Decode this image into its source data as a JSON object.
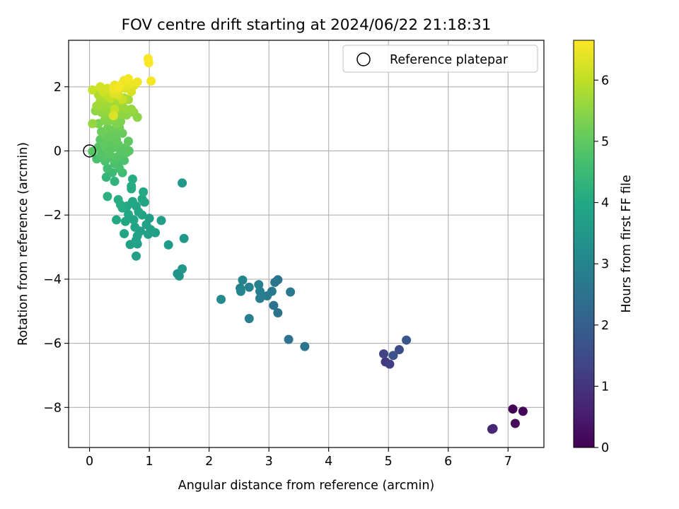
{
  "chart_data": {
    "type": "scatter",
    "title": "FOV centre drift starting at 2024/06/22 21:18:31",
    "xlabel": "Angular distance from reference (arcmin)",
    "ylabel": "Rotation from reference (arcmin)",
    "xlim": [
      -0.35,
      7.6
    ],
    "ylim": [
      -9.25,
      3.45
    ],
    "xticks": [
      0,
      1,
      2,
      3,
      4,
      5,
      6,
      7
    ],
    "yticks": [
      -8,
      -6,
      -4,
      -2,
      0,
      2
    ],
    "grid": true,
    "legend": {
      "placement": "top-right",
      "entries": [
        "Reference platepar"
      ]
    },
    "reference_point": {
      "x": 0,
      "y": 0
    },
    "colorbar": {
      "label": "Hours from first FF file",
      "colormap": "viridis",
      "range": [
        0,
        6.65
      ],
      "ticks": [
        0,
        1,
        2,
        3,
        4,
        5,
        6
      ]
    },
    "points": [
      {
        "x": 7.08,
        "y": -8.05,
        "c": 0.05
      },
      {
        "x": 7.25,
        "y": -8.12,
        "c": 0.1
      },
      {
        "x": 7.12,
        "y": -8.5,
        "c": 0.15
      },
      {
        "x": 6.73,
        "y": -8.68,
        "c": 0.7
      },
      {
        "x": 6.75,
        "y": -8.66,
        "c": 0.75
      },
      {
        "x": 5.3,
        "y": -5.9,
        "c": 1.8
      },
      {
        "x": 5.18,
        "y": -6.2,
        "c": 1.5
      },
      {
        "x": 5.08,
        "y": -6.38,
        "c": 1.7
      },
      {
        "x": 4.92,
        "y": -6.33,
        "c": 1.3
      },
      {
        "x": 4.95,
        "y": -6.58,
        "c": 1.1
      },
      {
        "x": 5.02,
        "y": -6.65,
        "c": 1.2
      },
      {
        "x": 3.6,
        "y": -6.1,
        "c": 2.6
      },
      {
        "x": 3.33,
        "y": -5.88,
        "c": 2.5
      },
      {
        "x": 3.15,
        "y": -4.02,
        "c": 2.55
      },
      {
        "x": 3.1,
        "y": -4.1,
        "c": 2.6
      },
      {
        "x": 3.05,
        "y": -4.38,
        "c": 2.65
      },
      {
        "x": 3.08,
        "y": -4.82,
        "c": 2.5
      },
      {
        "x": 3.15,
        "y": -5.05,
        "c": 2.55
      },
      {
        "x": 3.36,
        "y": -4.4,
        "c": 2.7
      },
      {
        "x": 2.97,
        "y": -4.52,
        "c": 2.75
      },
      {
        "x": 2.85,
        "y": -4.6,
        "c": 2.8
      },
      {
        "x": 2.85,
        "y": -4.38,
        "c": 2.85
      },
      {
        "x": 2.83,
        "y": -4.17,
        "c": 2.9
      },
      {
        "x": 2.67,
        "y": -4.25,
        "c": 2.95
      },
      {
        "x": 2.56,
        "y": -4.03,
        "c": 3.0
      },
      {
        "x": 2.52,
        "y": -4.28,
        "c": 2.9
      },
      {
        "x": 2.53,
        "y": -4.38,
        "c": 3.0
      },
      {
        "x": 2.2,
        "y": -4.63,
        "c": 3.15
      },
      {
        "x": 2.67,
        "y": -5.23,
        "c": 2.8
      },
      {
        "x": 1.55,
        "y": -1.0,
        "c": 3.5
      },
      {
        "x": 1.58,
        "y": -2.73,
        "c": 3.55
      },
      {
        "x": 1.55,
        "y": -3.68,
        "c": 3.5
      },
      {
        "x": 1.47,
        "y": -3.83,
        "c": 3.4
      },
      {
        "x": 1.5,
        "y": -3.9,
        "c": 3.45
      },
      {
        "x": 1.32,
        "y": -2.93,
        "c": 3.6
      },
      {
        "x": 1.2,
        "y": -2.17,
        "c": 3.7
      },
      {
        "x": 1.1,
        "y": -2.55,
        "c": 3.75
      },
      {
        "x": 1.02,
        "y": -2.45,
        "c": 3.8
      },
      {
        "x": 0.98,
        "y": -2.6,
        "c": 3.78
      },
      {
        "x": 1.0,
        "y": -2.1,
        "c": 3.7
      },
      {
        "x": 0.95,
        "y": -2.3,
        "c": 3.8
      },
      {
        "x": 0.92,
        "y": -1.6,
        "c": 3.9
      },
      {
        "x": 0.9,
        "y": -1.28,
        "c": 4.0
      },
      {
        "x": 0.88,
        "y": -2.0,
        "c": 3.85
      },
      {
        "x": 0.85,
        "y": -2.5,
        "c": 3.78
      },
      {
        "x": 0.82,
        "y": -1.9,
        "c": 3.88
      },
      {
        "x": 0.8,
        "y": -2.65,
        "c": 3.8
      },
      {
        "x": 0.8,
        "y": -2.9,
        "c": 3.75
      },
      {
        "x": 0.78,
        "y": -3.28,
        "c": 3.72
      },
      {
        "x": 0.78,
        "y": -1.72,
        "c": 3.9
      },
      {
        "x": 0.76,
        "y": -2.38,
        "c": 3.85
      },
      {
        "x": 0.74,
        "y": -2.15,
        "c": 3.9
      },
      {
        "x": 0.72,
        "y": -1.58,
        "c": 3.95
      },
      {
        "x": 0.72,
        "y": -0.88,
        "c": 4.1
      },
      {
        "x": 0.7,
        "y": -1.1,
        "c": 4.05
      },
      {
        "x": 0.7,
        "y": -1.18,
        "c": 4.05
      },
      {
        "x": 0.68,
        "y": -2.92,
        "c": 3.8
      },
      {
        "x": 0.65,
        "y": -1.98,
        "c": 3.95
      },
      {
        "x": 0.63,
        "y": -1.72,
        "c": 4.0
      },
      {
        "x": 0.6,
        "y": -2.2,
        "c": 3.95
      },
      {
        "x": 0.58,
        "y": -2.58,
        "c": 3.9
      },
      {
        "x": 0.55,
        "y": -1.78,
        "c": 4.05
      },
      {
        "x": 0.52,
        "y": -1.68,
        "c": 4.1
      },
      {
        "x": 0.48,
        "y": -1.52,
        "c": 4.1
      },
      {
        "x": 0.45,
        "y": -2.15,
        "c": 4.0
      },
      {
        "x": 0.42,
        "y": -0.95,
        "c": 4.3
      },
      {
        "x": 0.3,
        "y": -1.42,
        "c": 4.2
      },
      {
        "x": 0.28,
        "y": -0.82,
        "c": 4.35
      },
      {
        "x": 0.78,
        "y": -2.78,
        "c": 3.82
      },
      {
        "x": 0.88,
        "y": -1.5,
        "c": 3.95
      },
      {
        "x": 0.05,
        "y": -0.02,
        "c": 4.9
      },
      {
        "x": 0.12,
        "y": -0.25,
        "c": 4.7
      },
      {
        "x": 0.15,
        "y": 0.12,
        "c": 4.85
      },
      {
        "x": 0.18,
        "y": 0.35,
        "c": 4.95
      },
      {
        "x": 0.2,
        "y": -0.1,
        "c": 4.8
      },
      {
        "x": 0.22,
        "y": 0.55,
        "c": 5.1
      },
      {
        "x": 0.25,
        "y": 0.18,
        "c": 5.0
      },
      {
        "x": 0.26,
        "y": -0.32,
        "c": 4.75
      },
      {
        "x": 0.28,
        "y": 0.45,
        "c": 5.05
      },
      {
        "x": 0.3,
        "y": 0.02,
        "c": 4.9
      },
      {
        "x": 0.3,
        "y": -0.55,
        "c": 4.6
      },
      {
        "x": 0.33,
        "y": 0.3,
        "c": 5.0
      },
      {
        "x": 0.35,
        "y": -0.15,
        "c": 4.8
      },
      {
        "x": 0.36,
        "y": 0.65,
        "c": 5.15
      },
      {
        "x": 0.38,
        "y": -0.68,
        "c": 4.5
      },
      {
        "x": 0.4,
        "y": 0.1,
        "c": 4.95
      },
      {
        "x": 0.42,
        "y": -0.4,
        "c": 4.7
      },
      {
        "x": 0.45,
        "y": 0.5,
        "c": 5.1
      },
      {
        "x": 0.45,
        "y": -0.2,
        "c": 4.85
      },
      {
        "x": 0.48,
        "y": 0.2,
        "c": 5.0
      },
      {
        "x": 0.5,
        "y": -0.55,
        "c": 4.65
      },
      {
        "x": 0.5,
        "y": 0.72,
        "c": 5.2
      },
      {
        "x": 0.52,
        "y": 0.0,
        "c": 4.9
      },
      {
        "x": 0.55,
        "y": -0.1,
        "c": 4.85
      },
      {
        "x": 0.55,
        "y": 0.55,
        "c": 5.1
      },
      {
        "x": 0.58,
        "y": -0.3,
        "c": 4.75
      },
      {
        "x": 0.6,
        "y": 0.1,
        "c": 4.95
      },
      {
        "x": 0.62,
        "y": -0.05,
        "c": 4.9
      },
      {
        "x": 0.65,
        "y": 0.3,
        "c": 5.0
      },
      {
        "x": 0.66,
        "y": 0.0,
        "c": 4.9
      },
      {
        "x": 0.55,
        "y": -0.68,
        "c": 4.55
      },
      {
        "x": 0.45,
        "y": 0.35,
        "c": 5.05
      },
      {
        "x": 0.4,
        "y": -0.25,
        "c": 4.8
      },
      {
        "x": 0.35,
        "y": 0.45,
        "c": 5.05
      },
      {
        "x": 0.25,
        "y": -0.18,
        "c": 4.85
      },
      {
        "x": 0.2,
        "y": 0.6,
        "c": 5.15
      },
      {
        "x": 0.3,
        "y": 0.7,
        "c": 5.2
      },
      {
        "x": 0.32,
        "y": -0.08,
        "c": 4.9
      },
      {
        "x": 0.48,
        "y": -0.45,
        "c": 4.7
      },
      {
        "x": 0.15,
        "y": 0.85,
        "c": 5.3
      },
      {
        "x": 0.05,
        "y": 0.85,
        "c": 5.6
      },
      {
        "x": 0.1,
        "y": 1.25,
        "c": 5.5
      },
      {
        "x": 0.12,
        "y": 1.4,
        "c": 5.7
      },
      {
        "x": 0.15,
        "y": 1.75,
        "c": 5.85
      },
      {
        "x": 0.18,
        "y": 1.55,
        "c": 5.75
      },
      {
        "x": 0.2,
        "y": 1.2,
        "c": 5.55
      },
      {
        "x": 0.22,
        "y": 1.65,
        "c": 5.8
      },
      {
        "x": 0.25,
        "y": 1.35,
        "c": 5.65
      },
      {
        "x": 0.28,
        "y": 1.1,
        "c": 5.5
      },
      {
        "x": 0.3,
        "y": 1.5,
        "c": 5.7
      },
      {
        "x": 0.32,
        "y": 1.85,
        "c": 5.95
      },
      {
        "x": 0.35,
        "y": 1.2,
        "c": 5.6
      },
      {
        "x": 0.38,
        "y": 1.45,
        "c": 5.7
      },
      {
        "x": 0.4,
        "y": 1.62,
        "c": 5.8
      },
      {
        "x": 0.42,
        "y": 1.0,
        "c": 5.45
      },
      {
        "x": 0.45,
        "y": 1.3,
        "c": 5.6
      },
      {
        "x": 0.48,
        "y": 1.75,
        "c": 5.85
      },
      {
        "x": 0.5,
        "y": 1.55,
        "c": 5.75
      },
      {
        "x": 0.52,
        "y": 1.15,
        "c": 5.55
      },
      {
        "x": 0.55,
        "y": 1.4,
        "c": 5.65
      },
      {
        "x": 0.58,
        "y": 1.65,
        "c": 5.8
      },
      {
        "x": 0.6,
        "y": 1.3,
        "c": 5.6
      },
      {
        "x": 0.62,
        "y": 1.12,
        "c": 5.5
      },
      {
        "x": 0.65,
        "y": 1.6,
        "c": 5.75
      },
      {
        "x": 0.7,
        "y": 1.3,
        "c": 5.6
      },
      {
        "x": 0.74,
        "y": 1.2,
        "c": 5.55
      },
      {
        "x": 0.8,
        "y": 1.05,
        "c": 5.5
      },
      {
        "x": 0.35,
        "y": 0.95,
        "c": 5.4
      },
      {
        "x": 0.45,
        "y": 0.85,
        "c": 5.35
      },
      {
        "x": 0.25,
        "y": 0.95,
        "c": 5.4
      },
      {
        "x": 0.52,
        "y": 0.92,
        "c": 5.35
      },
      {
        "x": 0.05,
        "y": 1.9,
        "c": 6.1
      },
      {
        "x": 0.18,
        "y": 2.0,
        "c": 6.2
      },
      {
        "x": 0.22,
        "y": 1.85,
        "c": 6.15
      },
      {
        "x": 0.28,
        "y": 1.75,
        "c": 6.0
      },
      {
        "x": 0.3,
        "y": 1.95,
        "c": 6.2
      },
      {
        "x": 0.35,
        "y": 1.65,
        "c": 6.05
      },
      {
        "x": 0.38,
        "y": 1.9,
        "c": 6.25
      },
      {
        "x": 0.4,
        "y": 1.8,
        "c": 6.35
      },
      {
        "x": 0.42,
        "y": 2.05,
        "c": 6.4
      },
      {
        "x": 0.45,
        "y": 1.9,
        "c": 6.45
      },
      {
        "x": 0.48,
        "y": 1.75,
        "c": 6.3
      },
      {
        "x": 0.5,
        "y": 1.95,
        "c": 6.35
      },
      {
        "x": 0.55,
        "y": 2.1,
        "c": 6.45
      },
      {
        "x": 0.58,
        "y": 2.2,
        "c": 6.5
      },
      {
        "x": 0.6,
        "y": 1.95,
        "c": 6.3
      },
      {
        "x": 0.62,
        "y": 2.05,
        "c": 6.4
      },
      {
        "x": 0.65,
        "y": 2.25,
        "c": 6.55
      },
      {
        "x": 0.68,
        "y": 2.1,
        "c": 6.45
      },
      {
        "x": 0.7,
        "y": 1.85,
        "c": 6.25
      },
      {
        "x": 0.75,
        "y": 2.05,
        "c": 6.35
      },
      {
        "x": 0.8,
        "y": 2.15,
        "c": 6.5
      },
      {
        "x": 0.98,
        "y": 2.88,
        "c": 6.6
      },
      {
        "x": 0.99,
        "y": 2.75,
        "c": 6.62
      },
      {
        "x": 1.03,
        "y": 2.18,
        "c": 6.55
      },
      {
        "x": 0.55,
        "y": 1.6,
        "c": 6.1
      },
      {
        "x": 0.42,
        "y": 1.3,
        "c": 6.05
      },
      {
        "x": 0.4,
        "y": 1.1,
        "c": 6.3
      },
      {
        "x": 0.4,
        "y": 1.95,
        "c": 6.5
      },
      {
        "x": 0.5,
        "y": 2.0,
        "c": 6.55
      }
    ]
  }
}
